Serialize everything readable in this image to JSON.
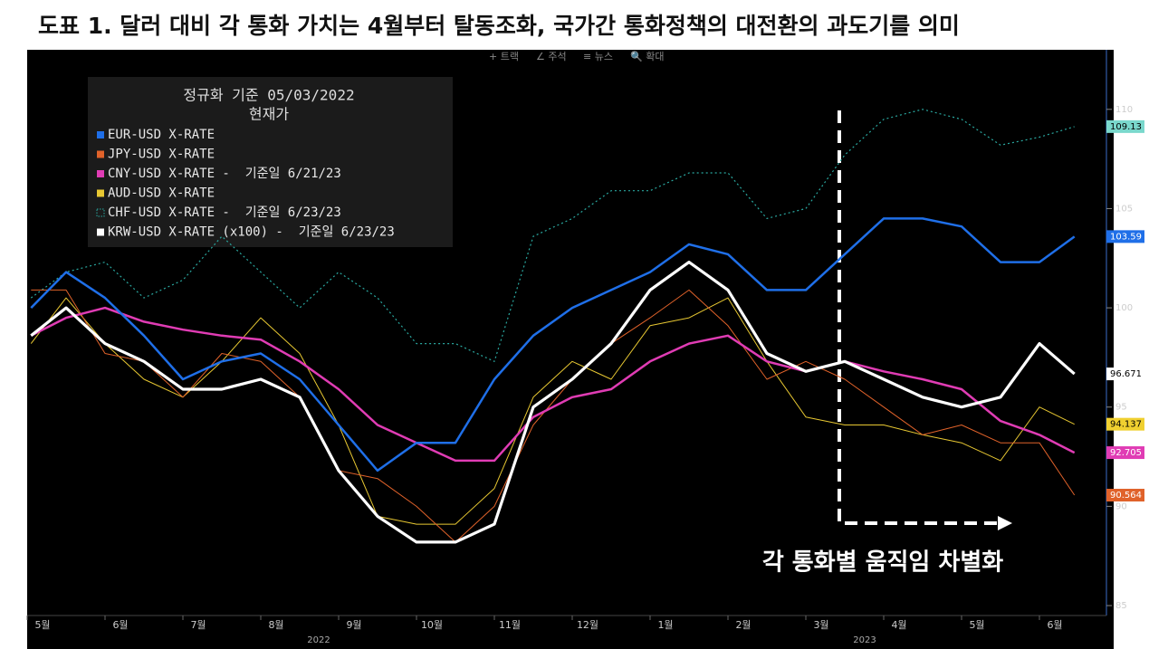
{
  "chart_data": {
    "type": "line",
    "title": "도표 1. 달러 대비 각 통화 가치는 4월부터 탈동조화, 국가간 통화정책의 대전환의 과도기를 의미",
    "toolbar": [
      "+ 트랙",
      "∠ 주석",
      "≡ 뉴스",
      "🔍 확대"
    ],
    "legend_title": "정규화 기준 05/03/2022",
    "legend_subtitle": "현재가",
    "annotation": "각 통화별 움직임 차별화",
    "year_labels": [
      "2022",
      "2023"
    ],
    "x": [
      0.05,
      0.5,
      1,
      1.5,
      2,
      2.5,
      3,
      3.5,
      4,
      4.5,
      5,
      5.5,
      6,
      6.5,
      7,
      7.5,
      8,
      8.5,
      9,
      9.5,
      10,
      10.5,
      11,
      11.5,
      12,
      12.5,
      13,
      13.45
    ],
    "xlim": [
      0,
      13.8
    ],
    "xticks": [
      {
        "value": 0,
        "label": "5월"
      },
      {
        "value": 1,
        "label": "6월"
      },
      {
        "value": 2,
        "label": "7월"
      },
      {
        "value": 3,
        "label": "8월"
      },
      {
        "value": 4,
        "label": "9월"
      },
      {
        "value": 5,
        "label": "10월"
      },
      {
        "value": 6,
        "label": "11월"
      },
      {
        "value": 7,
        "label": "12월"
      },
      {
        "value": 8,
        "label": "1월"
      },
      {
        "value": 9,
        "label": "2월"
      },
      {
        "value": 10,
        "label": "3월"
      },
      {
        "value": 11,
        "label": "4월"
      },
      {
        "value": 12,
        "label": "5월"
      },
      {
        "value": 13,
        "label": "6월"
      }
    ],
    "ylim": [
      84.5,
      113
    ],
    "yticks": [
      85,
      90,
      95,
      100,
      105,
      110
    ],
    "series": [
      {
        "name": "EUR-USD X-RATE",
        "color": "#1f6fe8",
        "width": 2.5,
        "style": "solid",
        "label_bg": "#1f6fe8",
        "label_fg": "#ffffff",
        "values": [
          100,
          101.8,
          100.5,
          98.6,
          96.4,
          97.3,
          97.7,
          96.4,
          94.1,
          91.8,
          93.2,
          93.2,
          96.4,
          98.6,
          100,
          100.9,
          101.8,
          103.2,
          102.7,
          100.9,
          100.9,
          102.7,
          104.5,
          104.5,
          104.1,
          102.3,
          102.3,
          103.59
        ]
      },
      {
        "name": "JPY-USD X-RATE",
        "color": "#e0622a",
        "width": 1,
        "style": "solid",
        "label_bg": "#e0622a",
        "label_fg": "#ffffff",
        "values": [
          100.9,
          100.9,
          97.7,
          97.3,
          95.5,
          97.7,
          97.3,
          95.5,
          91.8,
          91.4,
          90,
          88.2,
          90,
          94.1,
          96.4,
          98.2,
          99.5,
          100.9,
          99.1,
          96.4,
          97.3,
          96.4,
          95,
          93.6,
          94.1,
          93.2,
          93.2,
          90.564
        ]
      },
      {
        "name": "CNY-USD X-RATE -  기준일 6/21/23",
        "color": "#e03cb4",
        "width": 2.5,
        "style": "solid",
        "label_bg": "#e03cb4",
        "label_fg": "#ffffff",
        "values": [
          98.6,
          99.5,
          100,
          99.3,
          98.9,
          98.6,
          98.4,
          97.3,
          95.9,
          94.1,
          93.2,
          92.3,
          92.3,
          94.5,
          95.5,
          95.9,
          97.3,
          98.2,
          98.6,
          97.3,
          96.8,
          97.3,
          96.8,
          96.4,
          95.9,
          94.3,
          93.6,
          92.705
        ]
      },
      {
        "name": "AUD-USD X-RATE",
        "color": "#e8c832",
        "width": 1,
        "style": "solid",
        "label_bg": "#f0d030",
        "label_fg": "#000000",
        "values": [
          98.2,
          100.5,
          98.2,
          96.4,
          95.5,
          97.3,
          99.5,
          97.7,
          94.1,
          89.5,
          89.1,
          89.1,
          90.9,
          95.5,
          97.3,
          96.4,
          99.1,
          99.5,
          100.5,
          97.3,
          94.5,
          94.1,
          94.1,
          93.6,
          93.2,
          92.3,
          95,
          94.137
        ]
      },
      {
        "name": "CHF-USD X-RATE -  기준일 6/23/23",
        "color": "#2aa8a0",
        "width": 1.2,
        "style": "dotted",
        "label_bg": "#7ad8cc",
        "label_fg": "#000000",
        "values": [
          100.5,
          101.8,
          102.3,
          100.5,
          101.4,
          103.6,
          101.8,
          100,
          101.8,
          100.5,
          98.2,
          98.2,
          97.3,
          103.6,
          104.5,
          105.9,
          105.9,
          106.8,
          106.8,
          104.5,
          105,
          107.7,
          109.5,
          110,
          109.5,
          108.2,
          108.6,
          109.13
        ]
      },
      {
        "name": "KRW-USD X-RATE (x100) -  기준일 6/23/23",
        "color": "#ffffff",
        "width": 3.2,
        "style": "solid",
        "label_bg": "#ffffff",
        "label_fg": "#000000",
        "values": [
          98.6,
          100,
          98.2,
          97.3,
          95.9,
          95.9,
          96.4,
          95.5,
          91.8,
          89.5,
          88.2,
          88.2,
          89.1,
          95,
          96.4,
          98.2,
          100.9,
          102.3,
          100.9,
          97.7,
          96.8,
          97.3,
          96.4,
          95.5,
          95,
          95.5,
          98.2,
          96.671
        ]
      }
    ]
  }
}
